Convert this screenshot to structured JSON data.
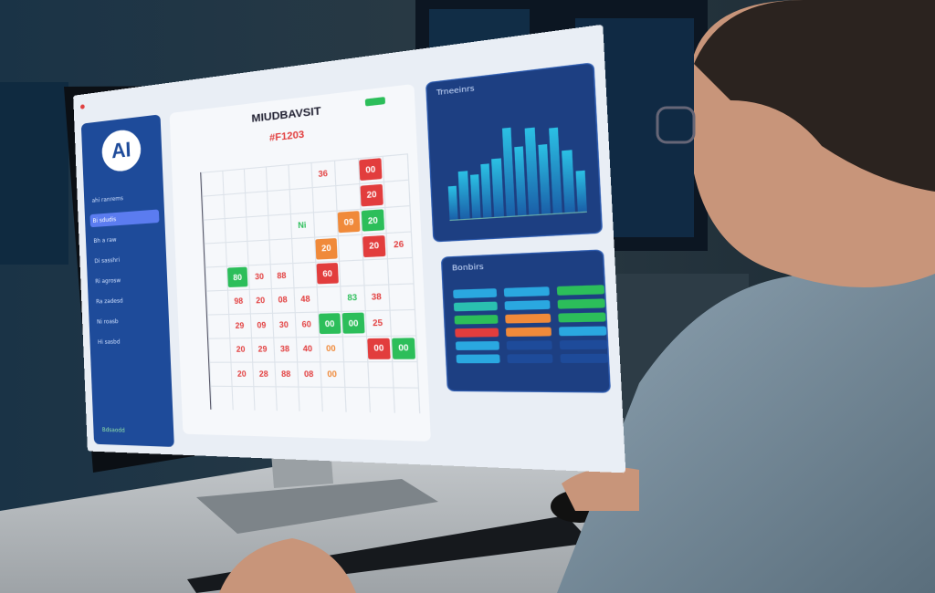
{
  "screen": {
    "logo": "AI",
    "title": "MIUDBAVSIT",
    "subtitle": "#F1203",
    "sidebar_items": [
      {
        "label": "ahi ranrems",
        "active": false
      },
      {
        "label": "Bi sdudis",
        "active": true
      },
      {
        "label": "Bh a raw",
        "active": false
      },
      {
        "label": "Di sasshri",
        "active": false
      },
      {
        "label": "Ri agrosw",
        "active": false
      },
      {
        "label": "Ra zadesd",
        "active": false
      },
      {
        "label": "Ni roasb",
        "active": false
      },
      {
        "label": "Hi sasbd",
        "active": false
      }
    ],
    "sidebar_footer": "Bdsaodd",
    "cells": [
      {
        "r": 0,
        "c": 5,
        "t": "36",
        "color": "#e23d3d",
        "fill": false
      },
      {
        "r": 0,
        "c": 7,
        "t": "00",
        "color": "#e23d3d",
        "fill": true
      },
      {
        "r": 1,
        "c": 7,
        "t": "20",
        "color": "#e23d3d",
        "fill": true
      },
      {
        "r": 2,
        "c": 6,
        "t": "09",
        "color": "#f08a3a",
        "fill": true
      },
      {
        "r": 2,
        "c": 7,
        "t": "20",
        "color": "#2cbe5a",
        "fill": true
      },
      {
        "r": 2,
        "c": 4,
        "t": "Ni",
        "color": "#2cbe5a",
        "fill": false
      },
      {
        "r": 3,
        "c": 5,
        "t": "20",
        "color": "#f08a3a",
        "fill": true
      },
      {
        "r": 3,
        "c": 7,
        "t": "20",
        "color": "#e23d3d",
        "fill": true
      },
      {
        "r": 3,
        "c": 8,
        "t": "26",
        "color": "#e23d3d",
        "fill": false
      },
      {
        "r": 4,
        "c": 1,
        "t": "80",
        "color": "#2cbe5a",
        "fill": true
      },
      {
        "r": 4,
        "c": 2,
        "t": "30",
        "color": "#e23d3d",
        "fill": false
      },
      {
        "r": 4,
        "c": 3,
        "t": "88",
        "color": "#e23d3d",
        "fill": false
      },
      {
        "r": 4,
        "c": 5,
        "t": "60",
        "color": "#e23d3d",
        "fill": true
      },
      {
        "r": 5,
        "c": 1,
        "t": "98",
        "color": "#e23d3d",
        "fill": false
      },
      {
        "r": 5,
        "c": 2,
        "t": "20",
        "color": "#e23d3d",
        "fill": false
      },
      {
        "r": 5,
        "c": 3,
        "t": "08",
        "color": "#e23d3d",
        "fill": false
      },
      {
        "r": 5,
        "c": 4,
        "t": "48",
        "color": "#e23d3d",
        "fill": false
      },
      {
        "r": 5,
        "c": 6,
        "t": "83",
        "color": "#2cbe5a",
        "fill": false
      },
      {
        "r": 5,
        "c": 7,
        "t": "38",
        "color": "#e23d3d",
        "fill": false
      },
      {
        "r": 6,
        "c": 1,
        "t": "29",
        "color": "#e23d3d",
        "fill": false
      },
      {
        "r": 6,
        "c": 2,
        "t": "09",
        "color": "#e23d3d",
        "fill": false
      },
      {
        "r": 6,
        "c": 3,
        "t": "30",
        "color": "#e23d3d",
        "fill": false
      },
      {
        "r": 6,
        "c": 4,
        "t": "60",
        "color": "#e23d3d",
        "fill": false
      },
      {
        "r": 6,
        "c": 5,
        "t": "00",
        "color": "#2cbe5a",
        "fill": true
      },
      {
        "r": 6,
        "c": 6,
        "t": "00",
        "color": "#2cbe5a",
        "fill": true
      },
      {
        "r": 6,
        "c": 7,
        "t": "25",
        "color": "#e23d3d",
        "fill": false
      },
      {
        "r": 7,
        "c": 1,
        "t": "20",
        "color": "#e23d3d",
        "fill": false
      },
      {
        "r": 7,
        "c": 2,
        "t": "29",
        "color": "#e23d3d",
        "fill": false
      },
      {
        "r": 7,
        "c": 3,
        "t": "38",
        "color": "#e23d3d",
        "fill": false
      },
      {
        "r": 7,
        "c": 4,
        "t": "40",
        "color": "#e23d3d",
        "fill": false
      },
      {
        "r": 7,
        "c": 5,
        "t": "00",
        "color": "#f08a3a",
        "fill": false
      },
      {
        "r": 7,
        "c": 7,
        "t": "00",
        "color": "#e23d3d",
        "fill": true
      },
      {
        "r": 7,
        "c": 8,
        "t": "00",
        "color": "#2cbe5a",
        "fill": true
      },
      {
        "r": 8,
        "c": 1,
        "t": "20",
        "color": "#e23d3d",
        "fill": false
      },
      {
        "r": 8,
        "c": 2,
        "t": "28",
        "color": "#e23d3d",
        "fill": false
      },
      {
        "r": 8,
        "c": 3,
        "t": "88",
        "color": "#e23d3d",
        "fill": false
      },
      {
        "r": 8,
        "c": 4,
        "t": "08",
        "color": "#e23d3d",
        "fill": false
      },
      {
        "r": 8,
        "c": 5,
        "t": "00",
        "color": "#f08a3a",
        "fill": false
      }
    ],
    "chart_panel_title": "Trneeinrs",
    "chart_bars": [
      0.35,
      0.5,
      0.45,
      0.55,
      0.6,
      0.9,
      0.7,
      0.88,
      0.7,
      0.85,
      0.62,
      0.4
    ],
    "stats_panel_title": "Bonbirs",
    "chip_colors": [
      "#2aa8e0",
      "#2aa8e0",
      "#2cbe5a",
      "#2ac0b0",
      "#2aa8e0",
      "#2cbe5a",
      "#2cbe5a",
      "#f08a3a",
      "#2cbe5a",
      "#e23d3d",
      "#f08a3a",
      "#2aa8e0",
      "#2aa8e0",
      "#1e4b9a",
      "#1e4b9a",
      "#2aa8e0",
      "#1e4b9a",
      "#1e4b9a"
    ]
  }
}
